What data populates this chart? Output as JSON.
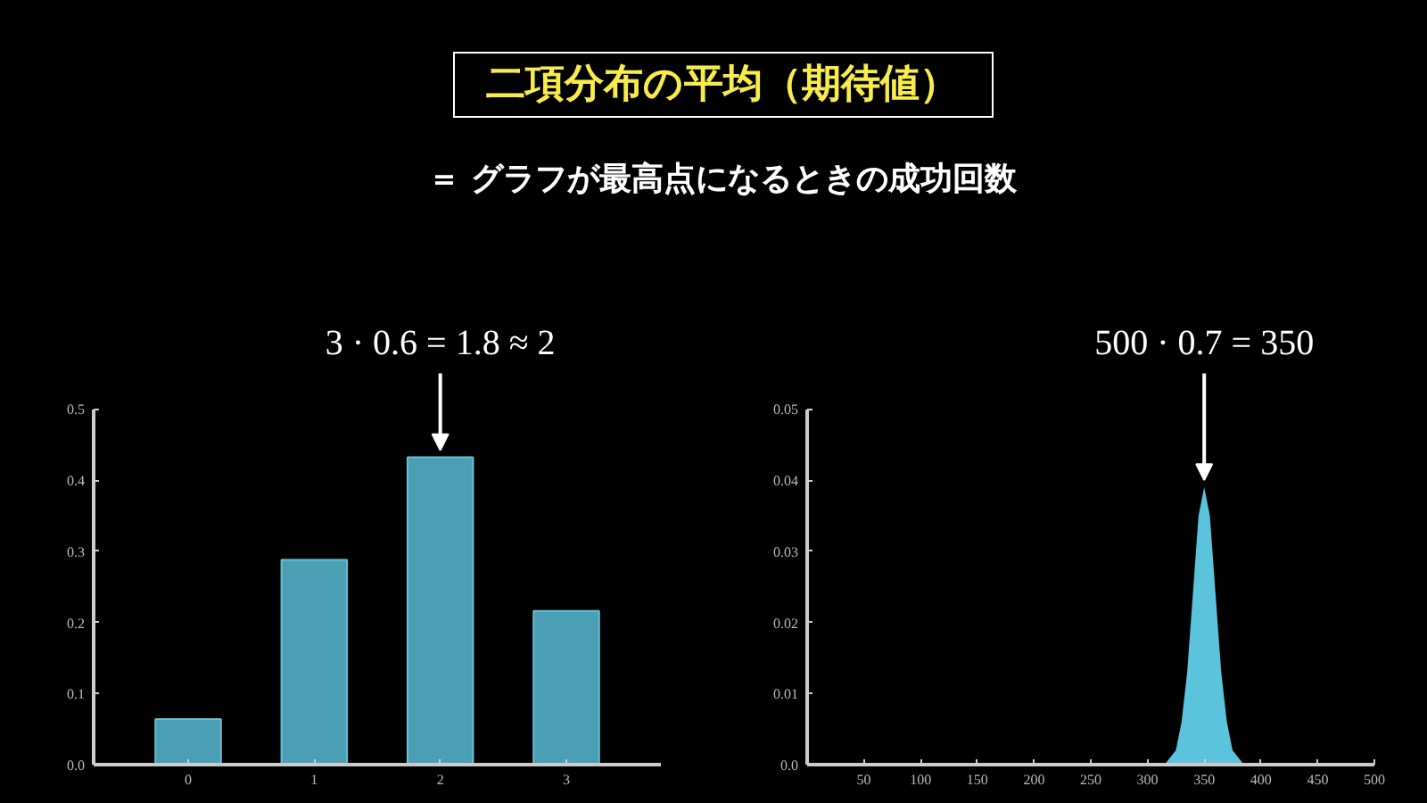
{
  "chart_data": [
    {
      "type": "bar",
      "title": "二項分布の平均（期待値）",
      "subtitle": "＝ グラフが最高点になるときの成功回数",
      "categories": [
        "0",
        "1",
        "2",
        "3"
      ],
      "values": [
        0.064,
        0.288,
        0.432,
        0.216
      ],
      "color": "#4a9fb5",
      "ylim": [
        0,
        0.5
      ],
      "yticks": [
        {
          "value": 0,
          "label": "0.0"
        },
        0.1,
        0.2,
        0.3,
        0.4,
        0.5
      ],
      "grid": false,
      "annotations": [
        {
          "text": "3 · 0.6 = 1.8 ≈ 2",
          "x": "2",
          "y": 0.432
        }
      ]
    },
    {
      "type": "area",
      "x": [
        300,
        305,
        310,
        315,
        320,
        325,
        330,
        335,
        340,
        345,
        350,
        355,
        360,
        365,
        370,
        375,
        380,
        385,
        390,
        395,
        400
      ],
      "values": [
        0,
        0,
        0,
        0,
        0.001,
        0.002,
        0.006,
        0.013,
        0.024,
        0.035,
        0.039,
        0.035,
        0.024,
        0.013,
        0.006,
        0.002,
        0.001,
        0,
        0,
        0,
        0
      ],
      "color": "#5bc3dc",
      "xlim": [
        0,
        500
      ],
      "xticks": [
        50,
        100,
        150,
        200,
        250,
        300,
        350,
        400,
        450,
        500
      ],
      "ylim": [
        0,
        0.05
      ],
      "yticks": [
        {
          "value": 0,
          "label": "0.0"
        },
        0.01,
        0.02,
        0.03,
        0.04,
        0.05
      ],
      "grid": false,
      "annotations": [
        {
          "text": "500 · 0.7 = 350",
          "x": 350,
          "y": 0.039
        }
      ]
    }
  ]
}
